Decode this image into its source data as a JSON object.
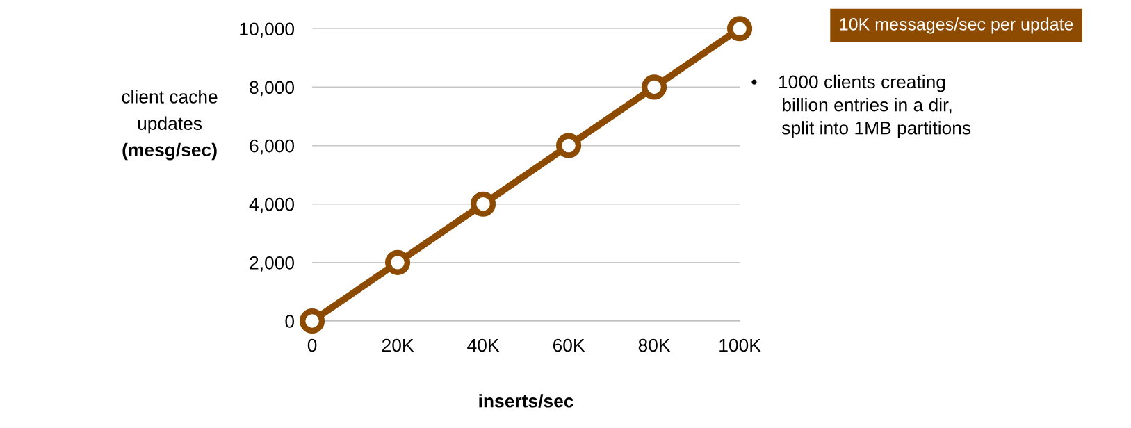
{
  "chart_data": {
    "type": "line",
    "categories": [
      "0",
      "20K",
      "40K",
      "60K",
      "80K",
      "100K"
    ],
    "series": [
      {
        "color": "#8c4b00",
        "values": [
          0,
          2000,
          4000,
          6000,
          8000,
          10000
        ]
      }
    ],
    "xlabel": "inserts/sec",
    "ylabel": "client cache\nupdates\n(mesg/sec)",
    "ylim": [
      0,
      10000
    ],
    "yticks": [
      {
        "value": 0,
        "label": "0"
      },
      {
        "value": 2000,
        "label": "2,000"
      },
      {
        "value": 4000,
        "label": "4,000"
      },
      {
        "value": 6000,
        "label": "6,000"
      },
      {
        "value": 8000,
        "label": "8,000"
      },
      {
        "value": 10000,
        "label": "10,000"
      }
    ],
    "grid": "y",
    "marker": "circle",
    "line_style": "solid",
    "legend": false,
    "annotations": [
      "10K messages/sec per update",
      "•    1000 clients creating\n      billion entries in a dir,\n      split into 1MB partitions"
    ]
  }
}
